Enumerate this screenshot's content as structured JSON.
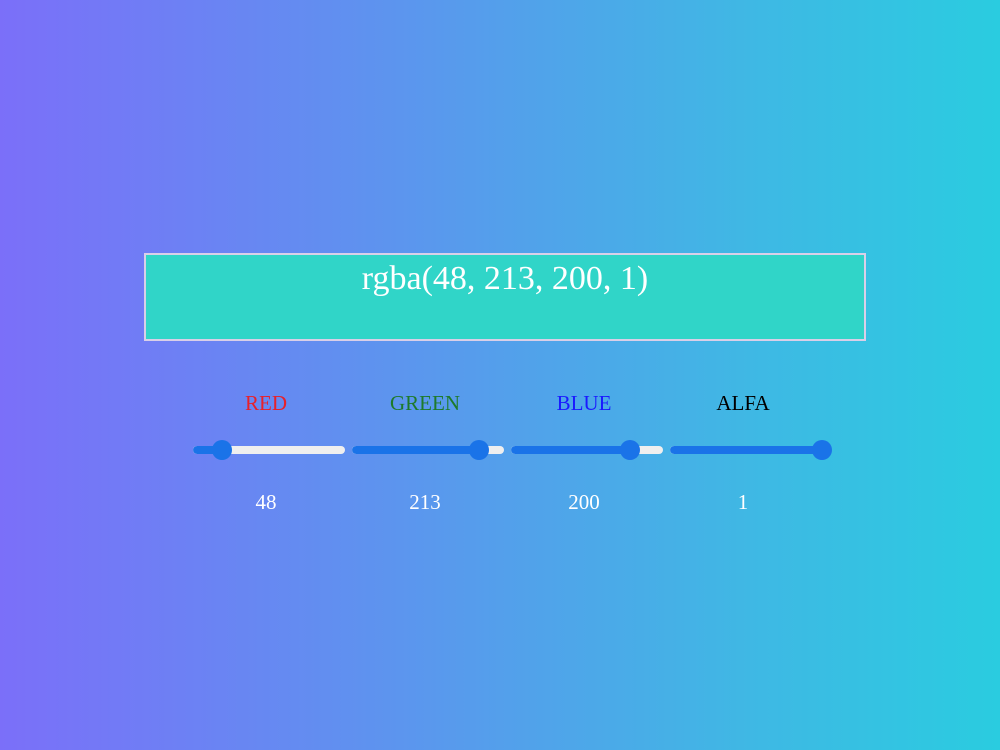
{
  "preview": {
    "text": "rgba(48, 213, 200, 1)",
    "color": "#30d5c8"
  },
  "channels": [
    {
      "label": "RED",
      "label_color": "#e8202a",
      "value": "48",
      "fraction": 0.1882
    },
    {
      "label": "GREEN",
      "label_color": "#1e7a2a",
      "value": "213",
      "fraction": 0.8353
    },
    {
      "label": "BLUE",
      "label_color": "#1a1aff",
      "value": "200",
      "fraction": 0.7843
    },
    {
      "label": "ALFA",
      "label_color": "#000000",
      "value": "1",
      "fraction": 1.0
    }
  ],
  "slider_accent": "#1a73e8",
  "slider_track": "#efefef"
}
